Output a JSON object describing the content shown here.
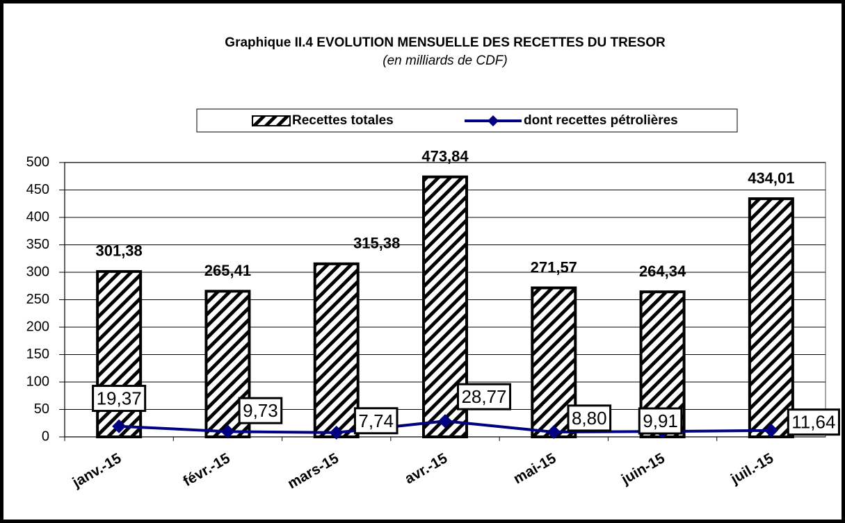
{
  "chart_data": {
    "type": "bar",
    "title": "Graphique II.4  EVOLUTION MENSUELLE DES RECETTES DU TRESOR",
    "subtitle": "(en milliards de CDF)",
    "categories": [
      "janv.-15",
      "févr.-15",
      "mars-15",
      "avr.-15",
      "mai-15",
      "juin-15",
      "juil.-15"
    ],
    "series": [
      {
        "name": "Recettes totales",
        "type": "bar",
        "color": "#000000",
        "values": [
          301.38,
          265.41,
          315.38,
          473.84,
          271.57,
          264.34,
          434.01
        ],
        "value_labels": [
          "301,38",
          "265,41",
          "315,38",
          "473,84",
          "271,57",
          "264,34",
          "434,01"
        ]
      },
      {
        "name": "dont recettes pétrolières",
        "type": "line",
        "color": "#000080",
        "values": [
          19.37,
          9.73,
          7.74,
          28.77,
          8.8,
          9.91,
          11.64
        ],
        "value_labels": [
          "19,37",
          "9,73",
          "7,74",
          "28,77",
          "8,80",
          "9,91",
          "11,64"
        ]
      }
    ],
    "ylim": [
      0,
      500
    ],
    "yticks": [
      0,
      50,
      100,
      150,
      200,
      250,
      300,
      350,
      400,
      450,
      500
    ],
    "grid": true,
    "legend": "top"
  }
}
